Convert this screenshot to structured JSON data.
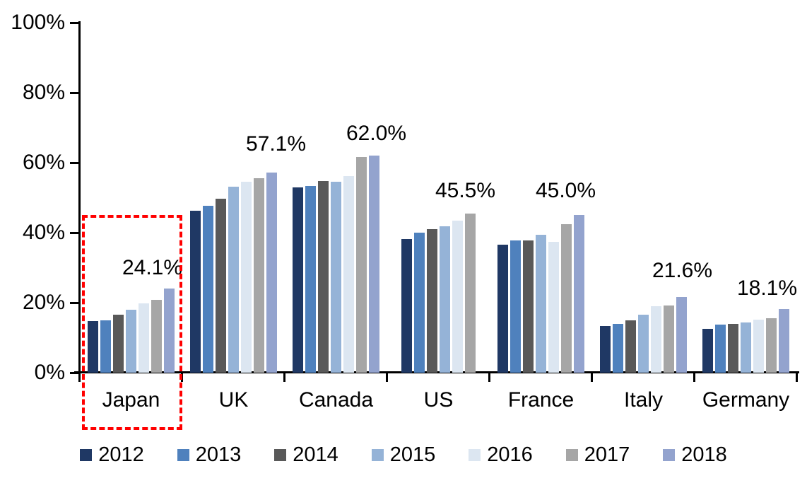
{
  "chart_data": {
    "type": "bar",
    "title": "",
    "categories": [
      "Japan",
      "UK",
      "Canada",
      "US",
      "France",
      "Italy",
      "Germany"
    ],
    "series": [
      {
        "name": "2012",
        "color": "#1F3864",
        "values": [
          14.8,
          46.3,
          53.0,
          38.2,
          36.6,
          13.3,
          12.5
        ]
      },
      {
        "name": "2013",
        "color": "#4F81BD",
        "values": [
          15.0,
          47.6,
          53.3,
          40.0,
          37.8,
          13.9,
          13.8
        ]
      },
      {
        "name": "2014",
        "color": "#595959",
        "values": [
          16.6,
          49.6,
          54.8,
          41.0,
          37.7,
          14.9,
          14.0
        ]
      },
      {
        "name": "2015",
        "color": "#95B3D7",
        "values": [
          17.9,
          53.2,
          54.5,
          41.9,
          39.3,
          16.6,
          14.3
        ]
      },
      {
        "name": "2016",
        "color": "#DCE6F1",
        "values": [
          19.8,
          54.5,
          56.2,
          43.4,
          37.3,
          19.0,
          15.1
        ]
      },
      {
        "name": "2017",
        "color": "#A6A6A6",
        "values": [
          20.9,
          55.6,
          61.6,
          45.5,
          42.4,
          19.2,
          15.5
        ]
      },
      {
        "name": "2018",
        "color": "#93A3CE",
        "values": [
          24.1,
          57.1,
          62.0,
          null,
          45.0,
          21.6,
          18.1
        ]
      }
    ],
    "data_labels": [
      {
        "category": "Japan",
        "text": "24.1%"
      },
      {
        "category": "UK",
        "text": "57.1%"
      },
      {
        "category": "Canada",
        "text": "62.0%"
      },
      {
        "category": "US",
        "text": "45.5%"
      },
      {
        "category": "France",
        "text": "45.0%"
      },
      {
        "category": "Italy",
        "text": "21.6%"
      },
      {
        "category": "Germany",
        "text": "18.1%"
      }
    ],
    "y_ticks": [
      "100%",
      "80%",
      "60%",
      "40%",
      "20%",
      "0%"
    ],
    "ylim": [
      0,
      100
    ],
    "grid": false,
    "legend_position": "bottom",
    "axis_color": "#000000",
    "highlight_box": {
      "category": "Japan",
      "color": "#FF0000",
      "style": "dashed"
    }
  }
}
